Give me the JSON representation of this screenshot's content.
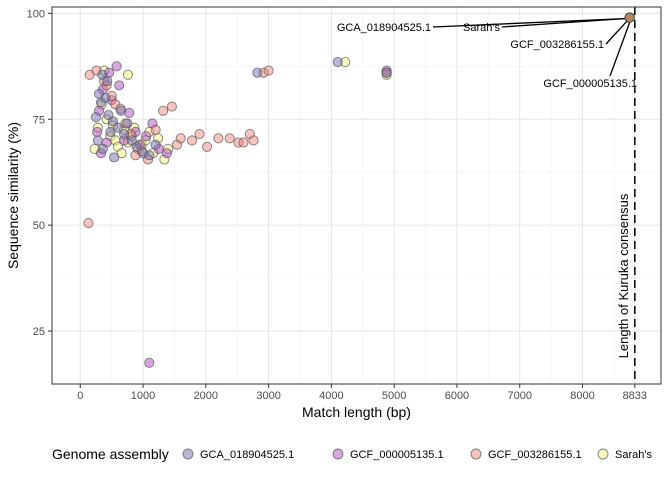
{
  "chart_data": {
    "type": "scatter",
    "xlabel": "Match length (bp)",
    "ylabel": "Sequence similarity (%)",
    "xlim": [
      -450,
      9250
    ],
    "ylim": [
      12.5,
      101.5
    ],
    "x_ticks": [
      0,
      1000,
      2000,
      3000,
      4000,
      5000,
      6000,
      7000,
      8000,
      8833
    ],
    "x_tick_labels": [
      "0",
      "1000",
      "2000",
      "3000",
      "4000",
      "5000",
      "6000",
      "7000",
      "8000",
      "8833"
    ],
    "y_ticks": [
      25,
      50,
      75,
      100
    ],
    "y_tick_labels": [
      "25",
      "50",
      "75",
      "100"
    ],
    "x_minor_ticks": [
      500,
      1500,
      2500,
      3500,
      4500,
      5500,
      6500,
      7500,
      8500
    ],
    "y_minor_ticks": [
      37.5,
      62.5,
      87.5
    ],
    "grid": true,
    "legend": {
      "title": "Genome assembly",
      "position": "bottom"
    },
    "reference_line": {
      "x": 8833,
      "style": "dashed",
      "label": "Length of Kuruka consensus"
    },
    "annotations": [
      {
        "text": "GCA_018904525.1",
        "x": 8750,
        "y": 99
      },
      {
        "text": "Sarah's",
        "x": 8750,
        "y": 99
      },
      {
        "text": "GCF_003286155.1",
        "x": 8750,
        "y": 99
      },
      {
        "text": "GCF_000005135.1",
        "x": 8750,
        "y": 99
      }
    ],
    "series": [
      {
        "name": "GCA_018904525.1",
        "color": "#7570b3",
        "points": [
          [
            250,
            75.5
          ],
          [
            300,
            81
          ],
          [
            350,
            85.5
          ],
          [
            330,
            79
          ],
          [
            400,
            80
          ],
          [
            450,
            76
          ],
          [
            520,
            74.5
          ],
          [
            600,
            73
          ],
          [
            700,
            71.5
          ],
          [
            820,
            70
          ],
          [
            900,
            68.5
          ],
          [
            1000,
            67
          ],
          [
            1100,
            66.5
          ],
          [
            1200,
            69
          ],
          [
            280,
            70
          ],
          [
            360,
            68
          ],
          [
            480,
            72
          ],
          [
            650,
            77
          ],
          [
            750,
            74
          ],
          [
            540,
            66
          ],
          [
            430,
            84
          ],
          [
            4100,
            88.5
          ],
          [
            4880,
            86
          ],
          [
            2820,
            86
          ],
          [
            8750,
            99
          ]
        ]
      },
      {
        "name": "GCF_000005135.1",
        "color": "#b44cc4",
        "points": [
          [
            580,
            87.5
          ],
          [
            460,
            86
          ],
          [
            360,
            82
          ],
          [
            300,
            77
          ],
          [
            270,
            72
          ],
          [
            330,
            67
          ],
          [
            420,
            69.5
          ],
          [
            500,
            79.5
          ],
          [
            620,
            83
          ],
          [
            700,
            70
          ],
          [
            780,
            76.5
          ],
          [
            880,
            72
          ],
          [
            950,
            69
          ],
          [
            1050,
            71
          ],
          [
            1150,
            74
          ],
          [
            1250,
            68
          ],
          [
            1380,
            67
          ],
          [
            1100,
            17.5
          ],
          [
            4880,
            86.5
          ],
          [
            8750,
            99
          ]
        ]
      },
      {
        "name": "GCF_003286155.1",
        "color": "#f08a7e",
        "points": [
          [
            130,
            50.5
          ],
          [
            150,
            85.5
          ],
          [
            260,
            86.5
          ],
          [
            380,
            84
          ],
          [
            420,
            83
          ],
          [
            500,
            80.5
          ],
          [
            560,
            78.5
          ],
          [
            640,
            77.5
          ],
          [
            720,
            74
          ],
          [
            800,
            71.5
          ],
          [
            880,
            66.5
          ],
          [
            980,
            67.5
          ],
          [
            1080,
            65.5
          ],
          [
            1200,
            72.5
          ],
          [
            1320,
            77
          ],
          [
            1460,
            78
          ],
          [
            1540,
            69
          ],
          [
            1600,
            70.5
          ],
          [
            1780,
            70
          ],
          [
            1900,
            71.5
          ],
          [
            2020,
            68.5
          ],
          [
            2200,
            70.5
          ],
          [
            2380,
            70.5
          ],
          [
            2520,
            69.5
          ],
          [
            2600,
            69.5
          ],
          [
            2700,
            71.5
          ],
          [
            2760,
            70
          ],
          [
            2920,
            86
          ],
          [
            3000,
            86.5
          ],
          [
            4880,
            86
          ],
          [
            8750,
            99
          ]
        ]
      },
      {
        "name": "Sarah's",
        "color": "#f7f57e",
        "points": [
          [
            230,
            68
          ],
          [
            280,
            73
          ],
          [
            340,
            78.5
          ],
          [
            420,
            75
          ],
          [
            480,
            71
          ],
          [
            520,
            73.5
          ],
          [
            560,
            70
          ],
          [
            600,
            68.5
          ],
          [
            660,
            67
          ],
          [
            700,
            72.5
          ],
          [
            760,
            69.5
          ],
          [
            820,
            71
          ],
          [
            860,
            73
          ],
          [
            920,
            68
          ],
          [
            980,
            69
          ],
          [
            1040,
            70
          ],
          [
            1100,
            72
          ],
          [
            1160,
            67
          ],
          [
            1240,
            70.5
          ],
          [
            1340,
            65.5
          ],
          [
            1400,
            68
          ],
          [
            760,
            85.5
          ],
          [
            380,
            86.5
          ],
          [
            4220,
            88.5
          ],
          [
            4880,
            85.5
          ],
          [
            8750,
            99
          ]
        ]
      }
    ]
  }
}
